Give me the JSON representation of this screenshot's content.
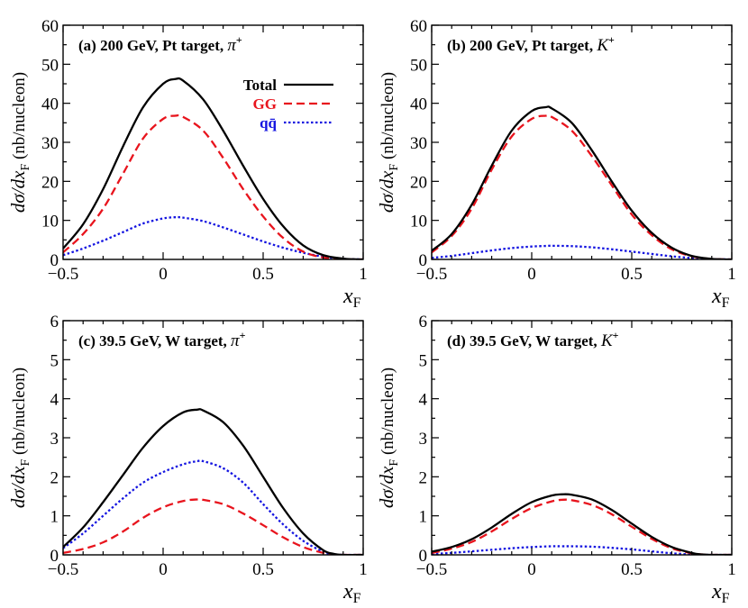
{
  "chart_data": [
    {
      "type": "line",
      "panel": "a",
      "title": "(a)  200 GeV, Pt target,",
      "particle": "π",
      "charge": "+",
      "xlabel": "x_F",
      "ylabel": "dσ/dx_F (nb/nucleon)",
      "xlim": [
        -0.5,
        1
      ],
      "ylim": [
        0,
        60
      ],
      "xticks": [
        -0.5,
        0,
        0.5,
        1
      ],
      "xtick_labels": [
        "−0.5",
        "0",
        "0.5",
        "1"
      ],
      "yticks": [
        0,
        10,
        20,
        30,
        40,
        50,
        60
      ],
      "ytick_labels": [
        "0",
        "10",
        "20",
        "30",
        "40",
        "50",
        "60"
      ],
      "x": [
        -0.5,
        -0.4,
        -0.3,
        -0.2,
        -0.1,
        0.0,
        0.06,
        0.1,
        0.2,
        0.3,
        0.4,
        0.5,
        0.6,
        0.7,
        0.8,
        0.9,
        0.95,
        1.0
      ],
      "series": [
        {
          "name": "Total",
          "color": "#000000",
          "dash": "solid",
          "values": [
            2.8,
            9,
            18,
            29,
            39,
            45,
            46.2,
            45.8,
            41,
            33,
            24,
            15.5,
            8.5,
            3.6,
            1.1,
            0.2,
            0.05,
            0
          ]
        },
        {
          "name": "GG",
          "color": "#e8141d",
          "dash": "dashed",
          "values": [
            1.8,
            6.5,
            13,
            22,
            31,
            36,
            36.8,
            36.5,
            33,
            26,
            18,
            11,
            5.5,
            2.0,
            0.5,
            0.05,
            0,
            0
          ]
        },
        {
          "name": "qq̄",
          "color": "#1414e0",
          "dash": "dotted",
          "values": [
            1.1,
            2.8,
            4.8,
            7,
            9.2,
            10.5,
            10.8,
            10.7,
            9.8,
            8.2,
            6.4,
            4.6,
            3.0,
            1.7,
            0.7,
            0.15,
            0.05,
            0
          ]
        }
      ],
      "legend": {
        "position": "top-right",
        "entries": [
          "Total",
          "GG",
          "qq̄"
        ]
      }
    },
    {
      "type": "line",
      "panel": "b",
      "title": "(b)  200 GeV, Pt target,",
      "particle": "K",
      "charge": "+",
      "xlabel": "x_F",
      "ylabel": "dσ/dx_F (nb/nucleon)",
      "xlim": [
        -0.5,
        1
      ],
      "ylim": [
        0,
        60
      ],
      "xticks": [
        -0.5,
        0,
        0.5,
        1
      ],
      "xtick_labels": [
        "−0.5",
        "0",
        "0.5",
        "1"
      ],
      "yticks": [
        0,
        10,
        20,
        30,
        40,
        50,
        60
      ],
      "ytick_labels": [
        "0",
        "10",
        "20",
        "30",
        "40",
        "50",
        "60"
      ],
      "x": [
        -0.5,
        -0.4,
        -0.3,
        -0.2,
        -0.1,
        0.0,
        0.07,
        0.1,
        0.2,
        0.3,
        0.4,
        0.5,
        0.6,
        0.7,
        0.8,
        0.9,
        0.95,
        1.0
      ],
      "series": [
        {
          "name": "Total",
          "color": "#000000",
          "dash": "solid",
          "values": [
            2.2,
            6.5,
            14,
            24,
            33,
            38,
            39.0,
            38.7,
            35,
            28,
            20,
            12.5,
            6.8,
            3.0,
            0.9,
            0.15,
            0.03,
            0
          ]
        },
        {
          "name": "GG",
          "color": "#e8141d",
          "dash": "dashed",
          "values": [
            1.8,
            6,
            13,
            23,
            31.5,
            36,
            36.8,
            36.5,
            33,
            26.5,
            19,
            11.5,
            6.2,
            2.6,
            0.8,
            0.1,
            0.02,
            0
          ]
        },
        {
          "name": "qq̄",
          "color": "#1414e0",
          "dash": "dotted",
          "values": [
            0.4,
            0.9,
            1.6,
            2.3,
            2.9,
            3.3,
            3.45,
            3.5,
            3.4,
            3.1,
            2.6,
            2.0,
            1.4,
            0.8,
            0.35,
            0.08,
            0.02,
            0
          ]
        }
      ]
    },
    {
      "type": "line",
      "panel": "c",
      "title": "(c)  39.5 GeV, W target,",
      "particle": "π",
      "charge": "+",
      "xlabel": "x_F",
      "ylabel": "dσ/dx_F (nb/nucleon)",
      "xlim": [
        -0.5,
        1
      ],
      "ylim": [
        0,
        6
      ],
      "xticks": [
        -0.5,
        0,
        0.5,
        1
      ],
      "xtick_labels": [
        "−0.5",
        "0",
        "0.5",
        "1"
      ],
      "yticks": [
        0,
        1,
        2,
        3,
        4,
        5,
        6
      ],
      "ytick_labels": [
        "0",
        "1",
        "2",
        "3",
        "4",
        "5",
        "6"
      ],
      "x": [
        -0.5,
        -0.4,
        -0.3,
        -0.2,
        -0.1,
        0.0,
        0.1,
        0.17,
        0.2,
        0.3,
        0.4,
        0.5,
        0.6,
        0.7,
        0.8,
        0.85,
        0.9,
        1.0
      ],
      "series": [
        {
          "name": "Total",
          "color": "#000000",
          "dash": "solid",
          "values": [
            0.2,
            0.7,
            1.35,
            2.05,
            2.75,
            3.3,
            3.65,
            3.72,
            3.7,
            3.4,
            2.8,
            2.0,
            1.2,
            0.55,
            0.12,
            0.03,
            0,
            0
          ]
        },
        {
          "name": "GG",
          "color": "#e8141d",
          "dash": "dashed",
          "values": [
            0.05,
            0.15,
            0.32,
            0.6,
            0.95,
            1.22,
            1.38,
            1.42,
            1.41,
            1.3,
            1.06,
            0.76,
            0.45,
            0.2,
            0.05,
            0.01,
            0,
            0
          ]
        },
        {
          "name": "qq̄",
          "color": "#1414e0",
          "dash": "dotted",
          "values": [
            0.17,
            0.55,
            1.0,
            1.45,
            1.85,
            2.12,
            2.32,
            2.4,
            2.4,
            2.22,
            1.85,
            1.3,
            0.78,
            0.36,
            0.08,
            0.02,
            0,
            0
          ]
        }
      ]
    },
    {
      "type": "line",
      "panel": "d",
      "title": "(d)  39.5 GeV, W target,",
      "particle": "K",
      "charge": "+",
      "xlabel": "x_F",
      "ylabel": "dσ/dx_F (nb/nucleon)",
      "xlim": [
        -0.5,
        1
      ],
      "ylim": [
        0,
        6
      ],
      "xticks": [
        -0.5,
        0,
        0.5,
        1
      ],
      "xtick_labels": [
        "−0.5",
        "0",
        "0.5",
        "1"
      ],
      "yticks": [
        0,
        1,
        2,
        3,
        4,
        5,
        6
      ],
      "ytick_labels": [
        "0",
        "1",
        "2",
        "3",
        "4",
        "5",
        "6"
      ],
      "x": [
        -0.5,
        -0.4,
        -0.3,
        -0.2,
        -0.1,
        0.0,
        0.1,
        0.15,
        0.2,
        0.3,
        0.4,
        0.5,
        0.6,
        0.7,
        0.8,
        0.85,
        0.9,
        1.0
      ],
      "series": [
        {
          "name": "Total",
          "color": "#000000",
          "dash": "solid",
          "values": [
            0.08,
            0.2,
            0.4,
            0.7,
            1.05,
            1.35,
            1.52,
            1.55,
            1.54,
            1.42,
            1.15,
            0.8,
            0.46,
            0.2,
            0.05,
            0.01,
            0,
            0
          ]
        },
        {
          "name": "GG",
          "color": "#e8141d",
          "dash": "dashed",
          "values": [
            0.05,
            0.16,
            0.33,
            0.6,
            0.92,
            1.2,
            1.37,
            1.41,
            1.4,
            1.28,
            1.04,
            0.72,
            0.41,
            0.17,
            0.04,
            0.01,
            0,
            0
          ]
        },
        {
          "name": "qq̄",
          "color": "#1414e0",
          "dash": "dotted",
          "values": [
            0.02,
            0.05,
            0.09,
            0.13,
            0.17,
            0.2,
            0.22,
            0.22,
            0.22,
            0.21,
            0.18,
            0.14,
            0.09,
            0.04,
            0.01,
            0,
            0,
            0
          ]
        }
      ]
    }
  ]
}
